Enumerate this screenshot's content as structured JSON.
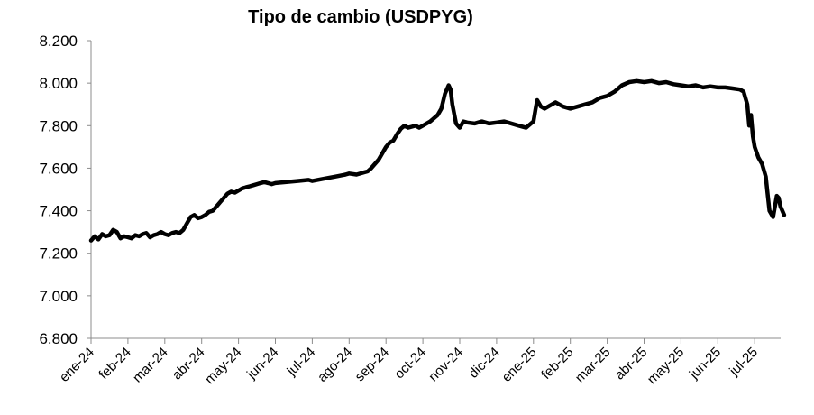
{
  "chart_data": {
    "type": "line",
    "title": "Tipo de cambio (USDPYG)",
    "xlabel": "",
    "ylabel": "",
    "ylim": [
      6800,
      8200
    ],
    "yticks": [
      6800,
      7000,
      7200,
      7400,
      7600,
      7800,
      8000,
      8200
    ],
    "ytick_labels": [
      "6.800",
      "7.000",
      "7.200",
      "7.400",
      "7.600",
      "7.800",
      "8.000",
      "8.200"
    ],
    "xticks": [
      "ene-24",
      "feb-24",
      "mar-24",
      "abr-24",
      "may-24",
      "jun-24",
      "jul-24",
      "ago-24",
      "sep-24",
      "oct-24",
      "nov-24",
      "dic-24",
      "ene-25",
      "feb-25",
      "mar-25",
      "abr-25",
      "may-25",
      "jun-25",
      "jul-25"
    ],
    "grid": false,
    "legend": "none",
    "series_color": "#000000",
    "series": [
      {
        "x": [
          0,
          0.1,
          0.2,
          0.3,
          0.4,
          0.5,
          0.6,
          0.7,
          0.8,
          0.9,
          1.0,
          1.1,
          1.2,
          1.3,
          1.4,
          1.5,
          1.6,
          1.7,
          1.8,
          1.9,
          2.0,
          2.1,
          2.2,
          2.3,
          2.4,
          2.5,
          2.6,
          2.7,
          2.8,
          2.9,
          3.0,
          3.1,
          3.2,
          3.3,
          3.4,
          3.5,
          3.6,
          3.7,
          3.8,
          3.9,
          4.0,
          4.1,
          4.2,
          4.3,
          4.4,
          4.5,
          4.6,
          4.7,
          4.8,
          4.9,
          5.0,
          5.3,
          5.6,
          5.9,
          6.0,
          6.3,
          6.6,
          6.9,
          7.0,
          7.2,
          7.4,
          7.5,
          7.6,
          7.8,
          8.0,
          8.1,
          8.2,
          8.3,
          8.4,
          8.5,
          8.6,
          8.7,
          8.8,
          8.9,
          9.0,
          9.2,
          9.4,
          9.5,
          9.6,
          9.7,
          9.75,
          9.8,
          9.9,
          10.0,
          10.1,
          10.2,
          10.4,
          10.6,
          10.8,
          11.0,
          11.2,
          11.4,
          11.6,
          11.8,
          12.0,
          12.05,
          12.1,
          12.2,
          12.3,
          12.4,
          12.5,
          12.6,
          12.8,
          13.0,
          13.2,
          13.4,
          13.6,
          13.8,
          14.0,
          14.2,
          14.4,
          14.6,
          14.8,
          15.0,
          15.2,
          15.4,
          15.6,
          15.8,
          16.0,
          16.2,
          16.4,
          16.6,
          16.8,
          17.0,
          17.2,
          17.4,
          17.6,
          17.7,
          17.8,
          17.85,
          17.9,
          17.95,
          18.0,
          18.1,
          18.2,
          18.3,
          18.35,
          18.4,
          18.5,
          18.6,
          18.65,
          18.7,
          18.8
        ],
        "values": [
          7260,
          7280,
          7265,
          7290,
          7280,
          7285,
          7310,
          7300,
          7270,
          7280,
          7275,
          7270,
          7285,
          7280,
          7290,
          7295,
          7275,
          7285,
          7290,
          7300,
          7290,
          7285,
          7295,
          7300,
          7295,
          7310,
          7340,
          7370,
          7380,
          7365,
          7370,
          7380,
          7395,
          7400,
          7420,
          7440,
          7460,
          7480,
          7490,
          7485,
          7495,
          7505,
          7510,
          7515,
          7520,
          7525,
          7530,
          7535,
          7530,
          7525,
          7530,
          7535,
          7540,
          7545,
          7540,
          7550,
          7560,
          7570,
          7575,
          7570,
          7580,
          7585,
          7600,
          7640,
          7700,
          7720,
          7730,
          7760,
          7785,
          7800,
          7790,
          7795,
          7800,
          7790,
          7800,
          7820,
          7850,
          7880,
          7950,
          7990,
          7970,
          7900,
          7810,
          7790,
          7820,
          7815,
          7810,
          7820,
          7810,
          7815,
          7820,
          7810,
          7800,
          7790,
          7820,
          7870,
          7920,
          7890,
          7880,
          7890,
          7900,
          7910,
          7890,
          7880,
          7890,
          7900,
          7910,
          7930,
          7940,
          7960,
          7990,
          8005,
          8010,
          8005,
          8010,
          8000,
          8005,
          7995,
          7990,
          7985,
          7990,
          7980,
          7985,
          7980,
          7980,
          7975,
          7970,
          7960,
          7900,
          7800,
          7850,
          7750,
          7700,
          7650,
          7620,
          7560,
          7480,
          7400,
          7370,
          7470,
          7460,
          7420,
          7380
        ]
      }
    ]
  }
}
